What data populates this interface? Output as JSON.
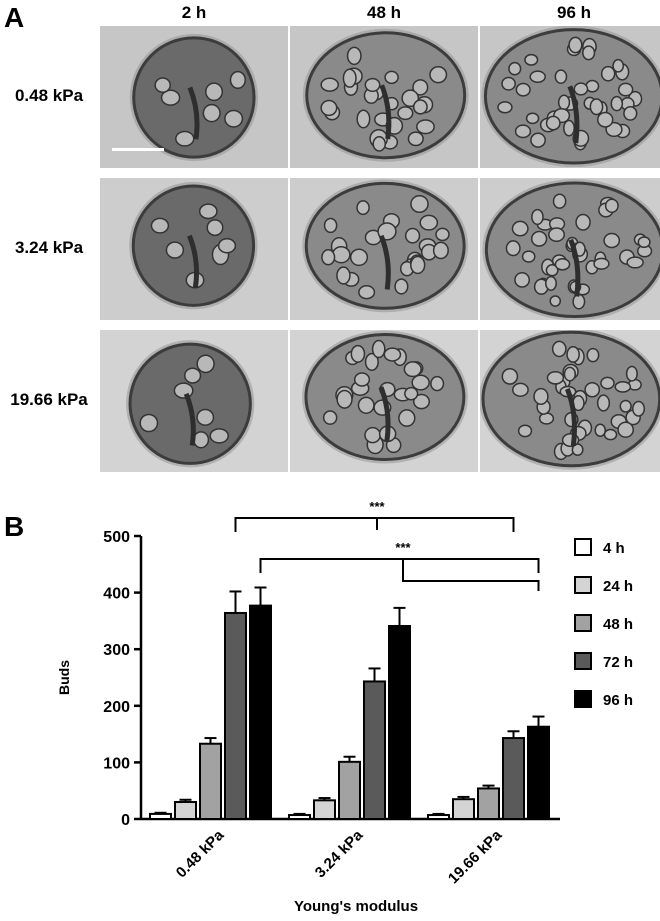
{
  "panel_a": {
    "letter": "A",
    "columns": [
      "2 h",
      "48 h",
      "96 h"
    ],
    "rows": [
      "0.48 kPa",
      "3.24 kPa",
      "19.66 kPa"
    ]
  },
  "panel_b": {
    "letter": "B"
  },
  "chart_data": {
    "type": "bar",
    "categories": [
      "0.48 kPa",
      "3.24 kPa",
      "19.66 kPa"
    ],
    "series": [
      {
        "name": "4 h",
        "values": [
          9,
          7,
          7
        ],
        "errors": [
          2,
          2,
          2
        ],
        "color": "#ffffff"
      },
      {
        "name": "24 h",
        "values": [
          30,
          33,
          35
        ],
        "errors": [
          4,
          4,
          4
        ],
        "color": "#d4d4d4"
      },
      {
        "name": "48 h",
        "values": [
          133,
          101,
          54
        ],
        "errors": [
          10,
          9,
          5
        ],
        "color": "#a2a2a2"
      },
      {
        "name": "72 h",
        "values": [
          364,
          243,
          143
        ],
        "errors": [
          38,
          23,
          12
        ],
        "color": "#5a5a5a"
      },
      {
        "name": "96 h",
        "values": [
          377,
          341,
          163
        ],
        "errors": [
          32,
          32,
          18
        ],
        "color": "#000000"
      }
    ],
    "xlabel": "Young's modulus",
    "ylabel": "Buds",
    "ylim": [
      0,
      500
    ],
    "yticks": [
      0,
      100,
      200,
      300,
      400,
      500
    ],
    "legend": "right",
    "grid": false,
    "significance": [
      {
        "label": "***",
        "from": [
          0,
          3
        ],
        "to": [
          2,
          3
        ],
        "mid_category": 1
      },
      {
        "label": "***",
        "from": [
          0,
          4
        ],
        "to": [
          2,
          4
        ],
        "mid_category": 1
      }
    ]
  }
}
